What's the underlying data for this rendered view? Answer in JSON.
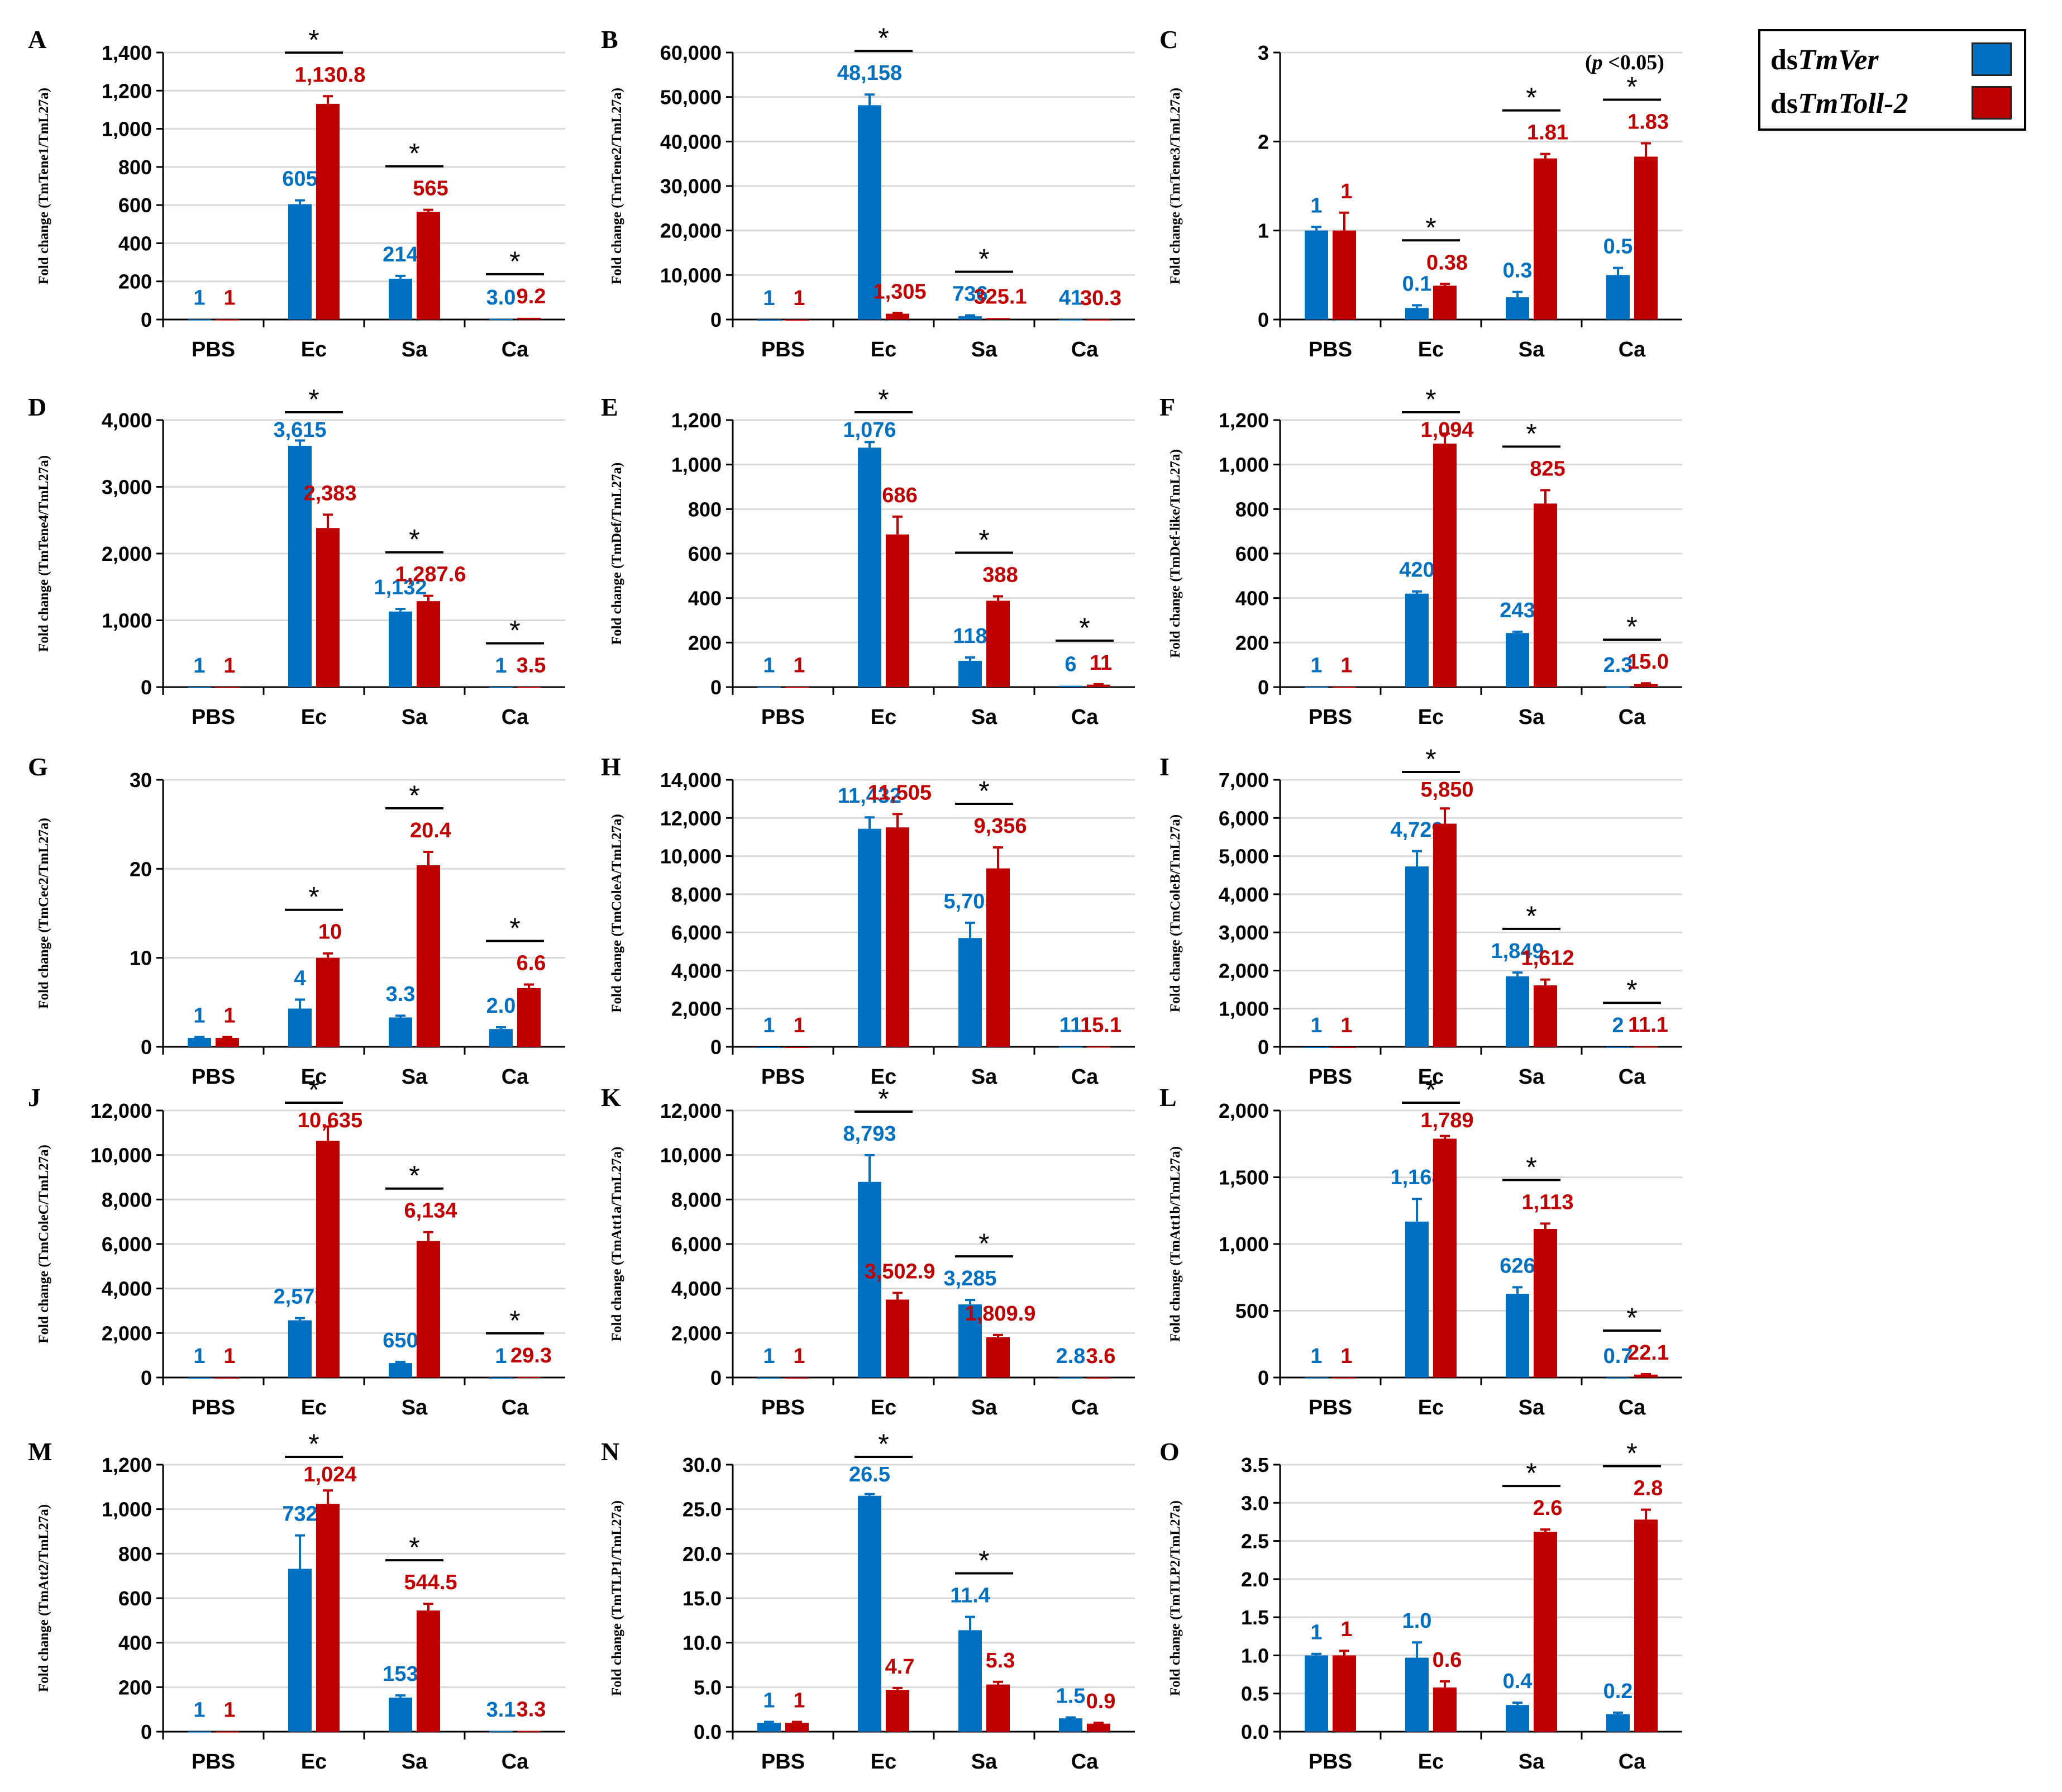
{
  "legend": {
    "items": [
      {
        "prefix": "ds",
        "name": "TmVer",
        "color": "#0070C0"
      },
      {
        "prefix": "ds",
        "name": "TmToll-2",
        "color": "#C00000"
      }
    ]
  },
  "significance_note": {
    "open": "(",
    "p": "p",
    "rest": " <0.05)"
  },
  "colors": {
    "ver": "#0070C0",
    "toll": "#C00000",
    "grid": "#d9d9d9",
    "axis": "#000000"
  },
  "chart_data": [
    {
      "panel": "A",
      "type": "bar",
      "ylabel": "Fold change (TmTene1/TmL27a)",
      "categories": [
        "PBS",
        "Ec",
        "Sa",
        "Ca"
      ],
      "ylim": [
        0,
        1400
      ],
      "yticks": [
        "0",
        "200",
        "400",
        "600",
        "800",
        "1,000",
        "1,200",
        "1,400"
      ],
      "series": [
        {
          "name": "dsTmVer",
          "values": [
            1,
            605,
            214,
            3.0
          ],
          "errors": [
            0,
            20,
            15,
            0
          ],
          "labels": [
            "1",
            "605",
            "214",
            "3.0"
          ]
        },
        {
          "name": "dsTmToll-2",
          "values": [
            1,
            1130.8,
            565,
            9.2
          ],
          "errors": [
            0,
            40,
            10,
            0
          ],
          "labels": [
            "1",
            "1,130.8",
            "565",
            "9.2"
          ]
        }
      ],
      "significant": [
        "Ec",
        "Sa",
        "Ca"
      ]
    },
    {
      "panel": "B",
      "type": "bar",
      "ylabel": "Fold change (TmTene2/TmL27a)",
      "categories": [
        "PBS",
        "Ec",
        "Sa",
        "Ca"
      ],
      "ylim": [
        0,
        60000
      ],
      "yticks": [
        "0",
        "10,000",
        "20,000",
        "30,000",
        "40,000",
        "50,000",
        "60,000"
      ],
      "series": [
        {
          "name": "dsTmVer",
          "values": [
            1,
            48158,
            736,
            41
          ],
          "errors": [
            0,
            2400,
            200,
            0
          ],
          "labels": [
            "1",
            "48,158",
            "736",
            "41"
          ]
        },
        {
          "name": "dsTmToll-2",
          "values": [
            1,
            1305,
            325.1,
            30.3
          ],
          "errors": [
            0,
            150,
            0,
            0
          ],
          "labels": [
            "1",
            "1,305",
            "325.1",
            "30.3"
          ]
        }
      ],
      "significant": [
        "Ec",
        "Sa"
      ]
    },
    {
      "panel": "C",
      "type": "bar",
      "ylabel": "Fold change (TmTene3/TmL27a)",
      "categories": [
        "PBS",
        "Ec",
        "Sa",
        "Ca"
      ],
      "ylim": [
        0,
        3
      ],
      "yticks": [
        "0",
        "1",
        "2",
        "3"
      ],
      "series": [
        {
          "name": "dsTmVer",
          "values": [
            1,
            0.13,
            0.25,
            0.5
          ],
          "errors": [
            0.04,
            0.03,
            0.06,
            0.08
          ],
          "labels": [
            "1",
            "0.1",
            "0.3",
            "0.5"
          ]
        },
        {
          "name": "dsTmToll-2",
          "values": [
            1,
            0.38,
            1.81,
            1.83
          ],
          "errors": [
            0.2,
            0.02,
            0.05,
            0.15
          ],
          "labels": [
            "1",
            "0.38",
            "1.81",
            "1.83"
          ]
        }
      ],
      "significant": [
        "Ec",
        "Sa",
        "Ca"
      ]
    },
    {
      "panel": "D",
      "type": "bar",
      "ylabel": "Fold change (TmTene4/TmL27a)",
      "categories": [
        "PBS",
        "Ec",
        "Sa",
        "Ca"
      ],
      "ylim": [
        0,
        4000
      ],
      "yticks": [
        "0",
        "1,000",
        "2,000",
        "3,000",
        "4,000"
      ],
      "series": [
        {
          "name": "dsTmVer",
          "values": [
            1,
            3615,
            1132,
            1
          ],
          "errors": [
            0,
            80,
            40,
            0
          ],
          "labels": [
            "1",
            "3,615",
            "1,132",
            "1"
          ]
        },
        {
          "name": "dsTmToll-2",
          "values": [
            1,
            2383,
            1287.6,
            3.5
          ],
          "errors": [
            0,
            200,
            80,
            0
          ],
          "labels": [
            "1",
            "2,383",
            "1,287.6",
            "3.5"
          ]
        }
      ],
      "significant": [
        "Ec",
        "Sa",
        "Ca"
      ]
    },
    {
      "panel": "E",
      "type": "bar",
      "ylabel": "Fold change (TmDef/TmL27a)",
      "categories": [
        "PBS",
        "Ec",
        "Sa",
        "Ca"
      ],
      "ylim": [
        0,
        1200
      ],
      "yticks": [
        "0",
        "200",
        "400",
        "600",
        "800",
        "1,000",
        "1,200"
      ],
      "series": [
        {
          "name": "dsTmVer",
          "values": [
            1,
            1076,
            118,
            6
          ],
          "errors": [
            0,
            25,
            15,
            0
          ],
          "labels": [
            "1",
            "1,076",
            "118",
            "6"
          ]
        },
        {
          "name": "dsTmToll-2",
          "values": [
            1,
            686,
            388,
            11
          ],
          "errors": [
            0,
            80,
            20,
            2
          ],
          "labels": [
            "1",
            "686",
            "388",
            "11"
          ]
        }
      ],
      "significant": [
        "Ec",
        "Sa",
        "Ca"
      ]
    },
    {
      "panel": "F",
      "type": "bar",
      "ylabel": "Fold change (TmDef-like/TmL27a)",
      "categories": [
        "PBS",
        "Ec",
        "Sa",
        "Ca"
      ],
      "ylim": [
        0,
        1200
      ],
      "yticks": [
        "0",
        "200",
        "400",
        "600",
        "800",
        "1,000",
        "1,200"
      ],
      "series": [
        {
          "name": "dsTmVer",
          "values": [
            1,
            420,
            243,
            2.3
          ],
          "errors": [
            0,
            10,
            6,
            0
          ],
          "labels": [
            "1",
            "420",
            "243",
            "2.3"
          ]
        },
        {
          "name": "dsTmToll-2",
          "values": [
            1,
            1094,
            825,
            15.0
          ],
          "errors": [
            0,
            45,
            60,
            2
          ],
          "labels": [
            "1",
            "1,094",
            "825",
            "15.0"
          ]
        }
      ],
      "significant": [
        "Ec",
        "Sa",
        "Ca"
      ]
    },
    {
      "panel": "G",
      "type": "bar",
      "ylabel": "Fold change (TmCec2/TmL27a)",
      "categories": [
        "PBS",
        "Ec",
        "Sa",
        "Ca"
      ],
      "ylim": [
        0,
        30
      ],
      "yticks": [
        "0",
        "10",
        "20",
        "30"
      ],
      "series": [
        {
          "name": "dsTmVer",
          "values": [
            1,
            4.3,
            3.3,
            2.0
          ],
          "errors": [
            0.1,
            1.0,
            0.2,
            0.2
          ],
          "labels": [
            "1",
            "4",
            "3.3",
            "2.0"
          ]
        },
        {
          "name": "dsTmToll-2",
          "values": [
            1,
            10,
            20.4,
            6.6
          ],
          "errors": [
            0.1,
            0.5,
            1.5,
            0.4
          ],
          "labels": [
            "1",
            "10",
            "20.4",
            "6.6"
          ]
        }
      ],
      "significant": [
        "Ec",
        "Sa",
        "Ca"
      ]
    },
    {
      "panel": "H",
      "type": "bar",
      "ylabel": "Fold change (TmColeA/TmL27a)",
      "categories": [
        "PBS",
        "Ec",
        "Sa",
        "Ca"
      ],
      "ylim": [
        0,
        14000
      ],
      "yticks": [
        "0",
        "2,000",
        "4,000",
        "6,000",
        "8,000",
        "10,000",
        "12,000",
        "14,000"
      ],
      "series": [
        {
          "name": "dsTmVer",
          "values": [
            1,
            11432,
            5705,
            11
          ],
          "errors": [
            0,
            600,
            800,
            0
          ],
          "labels": [
            "1",
            "11,432",
            "5,705",
            "11"
          ]
        },
        {
          "name": "dsTmToll-2",
          "values": [
            1,
            11505,
            9356,
            15.1
          ],
          "errors": [
            0,
            700,
            1100,
            0
          ],
          "labels": [
            "1",
            "11,505",
            "9,356",
            "15.1"
          ]
        }
      ],
      "significant": [
        "Sa"
      ]
    },
    {
      "panel": "I",
      "type": "bar",
      "ylabel": "Fold change (TmColeB/TmL27a)",
      "categories": [
        "PBS",
        "Ec",
        "Sa",
        "Ca"
      ],
      "ylim": [
        0,
        7000
      ],
      "yticks": [
        "0",
        "1,000",
        "2,000",
        "3,000",
        "4,000",
        "5,000",
        "6,000",
        "7,000"
      ],
      "series": [
        {
          "name": "dsTmVer",
          "values": [
            1,
            4729,
            1849,
            2
          ],
          "errors": [
            0,
            400,
            100,
            0
          ],
          "labels": [
            "1",
            "4,729",
            "1,849",
            "2"
          ]
        },
        {
          "name": "dsTmToll-2",
          "values": [
            1,
            5850,
            1612,
            11.1
          ],
          "errors": [
            0,
            400,
            150,
            0
          ],
          "labels": [
            "1",
            "5,850",
            "1,612",
            "11.1"
          ]
        }
      ],
      "significant": [
        "Ec",
        "Sa",
        "Ca"
      ]
    },
    {
      "panel": "J",
      "type": "bar",
      "ylabel": "Fold change (TmColeC/TmL27a)",
      "categories": [
        "PBS",
        "Ec",
        "Sa",
        "Ca"
      ],
      "ylim": [
        0,
        12000
      ],
      "yticks": [
        "0",
        "2,000",
        "4,000",
        "6,000",
        "8,000",
        "10,000",
        "12,000"
      ],
      "series": [
        {
          "name": "dsTmVer",
          "values": [
            1,
            2572,
            650,
            1
          ],
          "errors": [
            0,
            100,
            50,
            0
          ],
          "labels": [
            "1",
            "2,572",
            "650",
            "1"
          ]
        },
        {
          "name": "dsTmToll-2",
          "values": [
            1,
            10635,
            6134,
            29.3
          ],
          "errors": [
            0,
            650,
            400,
            0
          ],
          "labels": [
            "1",
            "10,635",
            "6,134",
            "29.3"
          ]
        }
      ],
      "significant": [
        "Ec",
        "Sa",
        "Ca"
      ]
    },
    {
      "panel": "K",
      "type": "bar",
      "ylabel": "Fold change (TmAtt1a/TmL27a)",
      "categories": [
        "PBS",
        "Ec",
        "Sa",
        "Ca"
      ],
      "ylim": [
        0,
        12000
      ],
      "yticks": [
        "0",
        "2,000",
        "4,000",
        "6,000",
        "8,000",
        "10,000",
        "12,000"
      ],
      "series": [
        {
          "name": "dsTmVer",
          "values": [
            1,
            8793,
            3285,
            2.8
          ],
          "errors": [
            0,
            1200,
            200,
            0
          ],
          "labels": [
            "1",
            "8,793",
            "3,285",
            "2.8"
          ]
        },
        {
          "name": "dsTmToll-2",
          "values": [
            1,
            3502.9,
            1809.9,
            3.6
          ],
          "errors": [
            0,
            300,
            100,
            0
          ],
          "labels": [
            "1",
            "3,502.9",
            "1,809.9",
            "3.6"
          ]
        }
      ],
      "significant": [
        "Ec",
        "Sa"
      ]
    },
    {
      "panel": "L",
      "type": "bar",
      "ylabel": "Fold change (TmAtt1b/TmL27a)",
      "categories": [
        "PBS",
        "Ec",
        "Sa",
        "Ca"
      ],
      "ylim": [
        0,
        2000
      ],
      "yticks": [
        "0",
        "500",
        "1,000",
        "1,500",
        "2,000"
      ],
      "series": [
        {
          "name": "dsTmVer",
          "values": [
            1,
            1168,
            626,
            0.7
          ],
          "errors": [
            0,
            170,
            50,
            0
          ],
          "labels": [
            "1",
            "1,168",
            "626",
            "0.7"
          ]
        },
        {
          "name": "dsTmToll-2",
          "values": [
            1,
            1789,
            1113,
            22.1
          ],
          "errors": [
            0,
            20,
            40,
            3
          ],
          "labels": [
            "1",
            "1,789",
            "1,113",
            "22.1"
          ]
        }
      ],
      "significant": [
        "Ec",
        "Sa",
        "Ca"
      ]
    },
    {
      "panel": "M",
      "type": "bar",
      "ylabel": "Fold change (TmAtt2/TmL27a)",
      "categories": [
        "PBS",
        "Ec",
        "Sa",
        "Ca"
      ],
      "ylim": [
        0,
        1200
      ],
      "yticks": [
        "0",
        "200",
        "400",
        "600",
        "800",
        "1,000",
        "1,200"
      ],
      "series": [
        {
          "name": "dsTmVer",
          "values": [
            1,
            732,
            153,
            3.1
          ],
          "errors": [
            0,
            150,
            10,
            0
          ],
          "labels": [
            "1",
            "732",
            "153",
            "3.1"
          ]
        },
        {
          "name": "dsTmToll-2",
          "values": [
            1,
            1024,
            544.5,
            3.3
          ],
          "errors": [
            0,
            60,
            30,
            0
          ],
          "labels": [
            "1",
            "1,024",
            "544.5",
            "3.3"
          ]
        }
      ],
      "significant": [
        "Ec",
        "Sa"
      ]
    },
    {
      "panel": "N",
      "type": "bar",
      "ylabel": "Fold change (TmTLP1/TmL27a)",
      "categories": [
        "PBS",
        "Ec",
        "Sa",
        "Ca"
      ],
      "ylim": [
        0,
        30
      ],
      "yticks": [
        "0.0",
        "5.0",
        "10.0",
        "15.0",
        "20.0",
        "25.0",
        "30.0"
      ],
      "series": [
        {
          "name": "dsTmVer",
          "values": [
            1,
            26.5,
            11.4,
            1.5
          ],
          "errors": [
            0.1,
            0.2,
            1.5,
            0.1
          ],
          "labels": [
            "1",
            "26.5",
            "11.4",
            "1.5"
          ]
        },
        {
          "name": "dsTmToll-2",
          "values": [
            1,
            4.7,
            5.3,
            0.9
          ],
          "errors": [
            0.1,
            0.2,
            0.3,
            0.1
          ],
          "labels": [
            "1",
            "4.7",
            "5.3",
            "0.9"
          ]
        }
      ],
      "significant": [
        "Ec",
        "Sa"
      ]
    },
    {
      "panel": "O",
      "type": "bar",
      "ylabel": "Fold change (TmTLP2/TmL27a)",
      "categories": [
        "PBS",
        "Ec",
        "Sa",
        "Ca"
      ],
      "ylim": [
        0,
        3.5
      ],
      "yticks": [
        "0.0",
        "0.5",
        "1.0",
        "1.5",
        "2.0",
        "2.5",
        "3.0",
        "3.5"
      ],
      "series": [
        {
          "name": "dsTmVer",
          "values": [
            1,
            0.97,
            0.35,
            0.23
          ],
          "errors": [
            0.02,
            0.2,
            0.03,
            0.02
          ],
          "labels": [
            "1",
            "1.0",
            "0.4",
            "0.2"
          ]
        },
        {
          "name": "dsTmToll-2",
          "values": [
            1,
            0.58,
            2.62,
            2.78
          ],
          "errors": [
            0.06,
            0.08,
            0.03,
            0.13
          ],
          "labels": [
            "1",
            "0.6",
            "2.6",
            "2.8"
          ]
        }
      ],
      "significant": [
        "Sa",
        "Ca"
      ]
    }
  ]
}
